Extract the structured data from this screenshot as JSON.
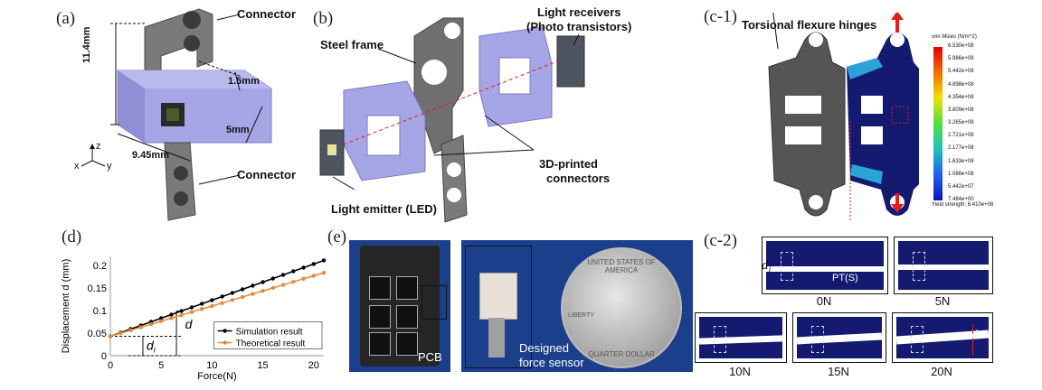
{
  "panel_a": {
    "letter": "(a)",
    "connector_top": "Connector",
    "connector_bottom": "Connector",
    "dim_height": "11.4mm",
    "dim_1_5": "1.5mm",
    "dim_5": "5mm",
    "dim_width": "9.45mm",
    "axis_z": "z",
    "axis_x": "x",
    "axis_y": "y"
  },
  "panel_b": {
    "letter": "(b)",
    "steel_frame": "Steel frame",
    "receivers_line1": "Light receivers",
    "receivers_line2": "(Photo transistors)",
    "connectors_line1": "3D-printed",
    "connectors_line2": "connectors",
    "emitter": "Light emitter (LED)"
  },
  "panel_c1": {
    "letter": "(c-1)",
    "hinges": "Torsional flexure hinges",
    "legend_title": "von Mises (N/m^2)",
    "legend_ticks": [
      "6.530e+08",
      "5.986e+08",
      "5.442e+08",
      "4.898e+08",
      "4.354e+08",
      "3.809e+08",
      "3.265e+08",
      "2.721e+08",
      "2.177e+08",
      "1.633e+08",
      "1.088e+08",
      "5.442e+07",
      "7.484e+00"
    ],
    "yield": "Yield strength: 6.410e+08"
  },
  "panel_c2": {
    "letter": "(c-2)",
    "di_symbol": "d",
    "di_sub": "i",
    "pt_label": "PT(S)",
    "d_symbol": "d",
    "captions": [
      "0N",
      "5N",
      "10N",
      "15N",
      "20N"
    ]
  },
  "panel_d": {
    "letter": "(d)",
    "di_symbol": "d",
    "di_sub": "i",
    "d_symbol": "d"
  },
  "panel_e": {
    "letter": "(e)",
    "pcb": "PCB",
    "sensor_line1": "Designed",
    "sensor_line2": "force sensor",
    "coin_top": "UNITED STATES OF AMERICA",
    "coin_bottom": "QUARTER DOLLAR",
    "coin_liberty": "LIBERTY"
  },
  "colors": {
    "simulation": "#000000",
    "theoretical": "#e8893a",
    "purple_part": "#a6a6e6",
    "steel": "#6f6f6f",
    "fea_blue": "#141a70"
  },
  "chart_data": {
    "type": "line",
    "xlabel": "Force(N)",
    "ylabel": "Displacement d (mm)",
    "xlim": [
      0,
      21
    ],
    "ylim": [
      0,
      0.22
    ],
    "xticks": [
      "0",
      "5",
      "10",
      "15",
      "20"
    ],
    "yticks": [
      "0",
      "0.05",
      "0.1",
      "0.15",
      "0.2"
    ],
    "grid": false,
    "legend_position": "bottom-right",
    "series": [
      {
        "name": "Simulation result",
        "color": "#000000",
        "x": [
          0,
          1,
          2,
          3,
          4,
          5,
          6,
          7,
          8,
          9,
          10,
          11,
          12,
          13,
          14,
          15,
          16,
          17,
          18,
          19,
          20,
          21
        ],
        "y": [
          0.043,
          0.051,
          0.059,
          0.067,
          0.075,
          0.083,
          0.091,
          0.099,
          0.107,
          0.115,
          0.123,
          0.131,
          0.139,
          0.147,
          0.155,
          0.163,
          0.171,
          0.179,
          0.187,
          0.195,
          0.203,
          0.211
        ]
      },
      {
        "name": "Theoretical result",
        "color": "#e8893a",
        "x": [
          0,
          1,
          2,
          3,
          4,
          5,
          6,
          7,
          8,
          9,
          10,
          11,
          12,
          13,
          14,
          15,
          16,
          17,
          18,
          19,
          20,
          21
        ],
        "y": [
          0.043,
          0.0497,
          0.0564,
          0.0631,
          0.0698,
          0.0765,
          0.0832,
          0.0899,
          0.0966,
          0.1033,
          0.11,
          0.1167,
          0.1234,
          0.1301,
          0.1368,
          0.1435,
          0.1502,
          0.1569,
          0.1636,
          0.1703,
          0.177,
          0.1837
        ]
      }
    ]
  }
}
